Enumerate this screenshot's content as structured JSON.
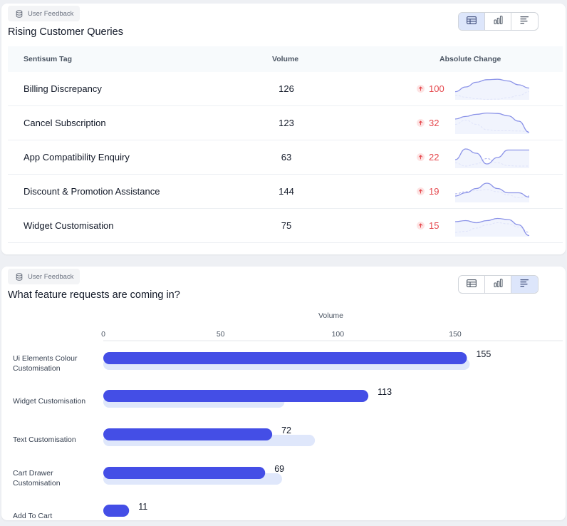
{
  "card1": {
    "pill_label": "User Feedback",
    "title": "Rising Customer Queries",
    "columns": {
      "tag": "Sentisum Tag",
      "volume": "Volume",
      "change": "Absolute Change"
    },
    "rows": [
      {
        "tag": "Billing Discrepancy",
        "volume": "126",
        "change": "100",
        "spark_current": [
          0.62,
          0.4,
          0.18,
          0.06,
          0.04,
          0.12,
          0.3,
          0.45
        ],
        "spark_previous": [
          0.78,
          0.88,
          0.95,
          0.98,
          0.97,
          0.9,
          0.8,
          0.62
        ]
      },
      {
        "tag": "Cancel Subscription",
        "volume": "123",
        "change": "32",
        "spark_current": [
          0.3,
          0.18,
          0.08,
          0.02,
          0.04,
          0.15,
          0.4,
          0.92
        ],
        "spark_previous": [
          0.55,
          0.35,
          0.55,
          0.8,
          0.85,
          0.85,
          0.86,
          0.88
        ]
      },
      {
        "tag": "App Compatibility Enquiry",
        "volume": "63",
        "change": "22",
        "spark_current": [
          0.6,
          0.1,
          0.3,
          0.8,
          0.5,
          0.15,
          0.15,
          0.15
        ],
        "spark_previous": [
          0.75,
          0.9,
          0.8,
          0.55,
          0.75,
          0.88,
          0.9,
          0.9
        ]
      },
      {
        "tag": "Discount & Promotion Assistance",
        "volume": "144",
        "change": "19",
        "spark_current": [
          0.7,
          0.55,
          0.35,
          0.1,
          0.35,
          0.55,
          0.55,
          0.75
        ],
        "spark_previous": [
          0.6,
          0.5,
          0.45,
          0.4,
          0.5,
          0.65,
          0.78,
          0.7
        ]
      },
      {
        "tag": "Widget Customisation",
        "volume": "75",
        "change": "15",
        "spark_current": [
          0.3,
          0.25,
          0.35,
          0.25,
          0.15,
          0.2,
          0.45,
          0.95
        ],
        "spark_previous": [
          0.8,
          0.75,
          0.6,
          0.45,
          0.35,
          0.4,
          0.55,
          0.8
        ]
      }
    ]
  },
  "card2": {
    "pill_label": "User Feedback",
    "title": "What feature requests are coming in?",
    "chart_data": {
      "type": "bar",
      "orientation": "horizontal",
      "xlabel": "Volume",
      "xlim": [
        0,
        150
      ],
      "ticks": [
        "0",
        "50",
        "100",
        "150"
      ],
      "tick_values": [
        0,
        50,
        100,
        150
      ],
      "categories": [
        [
          "Ui Elements Colour",
          "Customisation"
        ],
        [
          "Widget Customisation"
        ],
        [
          "Text Customisation"
        ],
        [
          "Cart Drawer",
          "Customisation"
        ],
        [
          "Add To Cart"
        ]
      ],
      "series": [
        {
          "values": [
            155,
            113,
            72,
            69,
            11
          ]
        },
        {
          "values": [
            155,
            76,
            89,
            75,
            null
          ]
        }
      ],
      "value_labels": [
        "155",
        "113",
        "72",
        "69",
        "11"
      ]
    }
  },
  "colors": {
    "bar_primary": "#444ee6",
    "bar_previous": "#dfe7fb",
    "change_up": "#e5484d",
    "spark_line": "#8b93e8"
  },
  "icons": {
    "pill": "database-icon",
    "view_table": "table-view-icon",
    "view_bar": "bar-chart-icon",
    "view_hbar": "horizontal-bar-icon",
    "change": "arrow-up-icon"
  }
}
